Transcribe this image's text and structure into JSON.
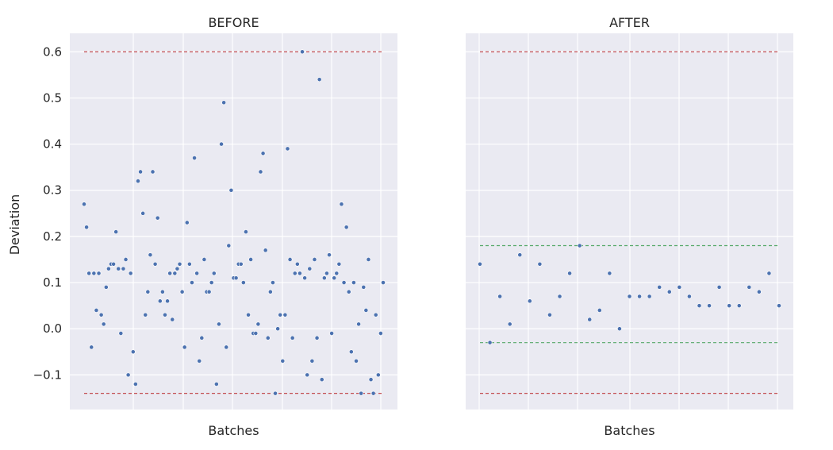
{
  "chart_data": [
    {
      "type": "scatter",
      "title": "BEFORE",
      "xlabel": "Batches",
      "ylabel": "Deviation",
      "ylim": [
        -0.175,
        0.64
      ],
      "yticks": [
        "0.6",
        "0.5",
        "0.4",
        "0.3",
        "0.2",
        "0.1",
        "0.0",
        "−0.1"
      ],
      "ytick_values": [
        0.6,
        0.5,
        0.4,
        0.3,
        0.2,
        0.1,
        0.0,
        -0.1
      ],
      "xticks_labeled": false,
      "grid": true,
      "reference_lines": [
        {
          "y": 0.6,
          "style": "dashed",
          "color": "#c44e52"
        },
        {
          "y": -0.14,
          "style": "dashed",
          "color": "#c44e52"
        }
      ],
      "marker_color": "#4c72b0",
      "xlim": [
        0,
        100
      ],
      "points_y": [
        0.27,
        0.22,
        0.12,
        -0.04,
        0.12,
        0.04,
        0.12,
        0.03,
        0.01,
        0.09,
        0.13,
        0.14,
        0.14,
        0.21,
        0.13,
        -0.01,
        0.13,
        0.15,
        -0.1,
        0.12,
        -0.05,
        -0.12,
        0.32,
        0.34,
        0.25,
        0.03,
        0.08,
        0.16,
        0.34,
        0.14,
        0.24,
        0.06,
        0.08,
        0.03,
        0.06,
        0.12,
        0.02,
        0.12,
        0.13,
        0.14,
        0.08,
        -0.04,
        0.23,
        0.14,
        0.1,
        0.37,
        0.12,
        -0.07,
        -0.02,
        0.15,
        0.08,
        0.08,
        0.1,
        0.12,
        -0.12,
        0.01,
        0.4,
        0.49,
        -0.04,
        0.18,
        0.3,
        0.11,
        0.11,
        0.14,
        0.14,
        0.1,
        0.21,
        0.03,
        0.15,
        -0.01,
        -0.01,
        0.01,
        0.34,
        0.38,
        0.17,
        -0.02,
        0.08,
        0.1,
        -0.14,
        0.0,
        0.03,
        -0.07,
        0.03,
        0.39,
        0.15,
        -0.02,
        0.12,
        0.14,
        0.12,
        0.6,
        0.11,
        -0.1,
        0.13,
        -0.07,
        0.15,
        -0.02,
        0.54,
        -0.11,
        0.11,
        0.12,
        0.16,
        -0.01,
        0.11,
        0.12,
        0.14,
        0.27,
        0.1,
        0.22,
        0.08,
        -0.05,
        0.1,
        -0.07,
        0.01,
        -0.14,
        0.09,
        0.04,
        0.15,
        -0.11,
        -0.14,
        0.03,
        -0.1,
        -0.01,
        0.1
      ]
    },
    {
      "type": "scatter",
      "title": "AFTER",
      "xlabel": "Batches",
      "ylabel": "",
      "ylim": [
        -0.175,
        0.64
      ],
      "xticks_labeled": false,
      "grid": true,
      "reference_lines": [
        {
          "y": 0.6,
          "style": "dashed",
          "color": "#c44e52"
        },
        {
          "y": -0.14,
          "style": "dashed",
          "color": "#c44e52"
        },
        {
          "y": 0.18,
          "style": "dashed",
          "color": "#55a868"
        },
        {
          "y": -0.03,
          "style": "dashed",
          "color": "#55a868"
        }
      ],
      "marker_color": "#4c72b0",
      "xlim": [
        0,
        30
      ],
      "points_y": [
        0.14,
        -0.03,
        0.07,
        0.01,
        0.16,
        0.06,
        0.14,
        0.03,
        0.07,
        0.12,
        0.18,
        0.02,
        0.04,
        0.12,
        0.0,
        0.07,
        0.07,
        0.07,
        0.09,
        0.08,
        0.09,
        0.07,
        0.05,
        0.05,
        0.09,
        0.05,
        0.05,
        0.09,
        0.08,
        0.12,
        0.05
      ]
    }
  ]
}
